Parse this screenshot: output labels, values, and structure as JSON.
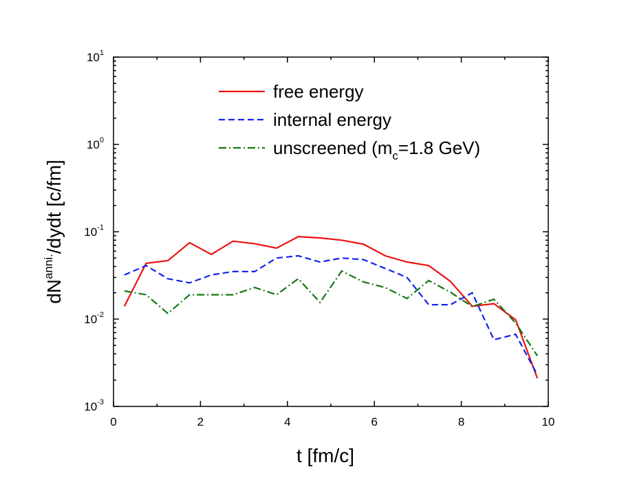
{
  "chart_data": {
    "type": "line",
    "x_label": "t [fm/c]",
    "y_label": {
      "base": "dN",
      "sup": "anni.",
      "rest": "/dydt [c/fm]"
    },
    "x": [
      0.25,
      0.75,
      1.25,
      1.75,
      2.25,
      2.75,
      3.25,
      3.75,
      4.25,
      4.75,
      5.25,
      5.75,
      6.25,
      6.75,
      7.25,
      7.75,
      8.25,
      8.75,
      9.25,
      9.75
    ],
    "series": [
      {
        "name": "free energy",
        "color": "#ee1111",
        "linestyle": "solid",
        "values": [
          0.014,
          0.0435,
          0.0467,
          0.075,
          0.055,
          0.078,
          0.073,
          0.065,
          0.088,
          0.085,
          0.08,
          0.072,
          0.053,
          0.045,
          0.041,
          0.027,
          0.014,
          0.015,
          0.0098,
          0.0021
        ]
      },
      {
        "name": "internal energy",
        "color": "#1122ee",
        "linestyle": "dashed",
        "values": [
          0.032,
          0.041,
          0.029,
          0.026,
          0.032,
          0.035,
          0.035,
          0.05,
          0.053,
          0.045,
          0.05,
          0.048,
          0.038,
          0.03,
          0.0146,
          0.0146,
          0.02,
          0.0058,
          0.0067,
          0.0023
        ]
      },
      {
        "name": [
          "unscreened (m",
          "c",
          "=1.8 GeV)"
        ],
        "color": "#117711",
        "linestyle": "dashdot",
        "values": [
          0.021,
          0.019,
          0.0116,
          0.019,
          0.019,
          0.019,
          0.023,
          0.019,
          0.029,
          0.0155,
          0.0355,
          0.0266,
          0.023,
          0.0172,
          0.0276,
          0.0203,
          0.0139,
          0.0169,
          0.009,
          0.0038
        ]
      }
    ],
    "xlim": [
      0,
      10
    ],
    "xticks": [
      0,
      2,
      4,
      6,
      8,
      10
    ],
    "ylim": [
      0.001,
      10
    ],
    "ylog": true,
    "yticks": [
      {
        "value": 0.001,
        "label": "10",
        "exponent": "-3"
      },
      {
        "value": 0.01,
        "label": "10",
        "exponent": "-2"
      },
      {
        "value": 0.1,
        "label": "10",
        "exponent": "-1"
      },
      {
        "value": 1,
        "label": "10",
        "exponent": "0"
      },
      {
        "value": 10,
        "label": "10",
        "exponent": "1"
      }
    ],
    "legend": "top-center"
  }
}
